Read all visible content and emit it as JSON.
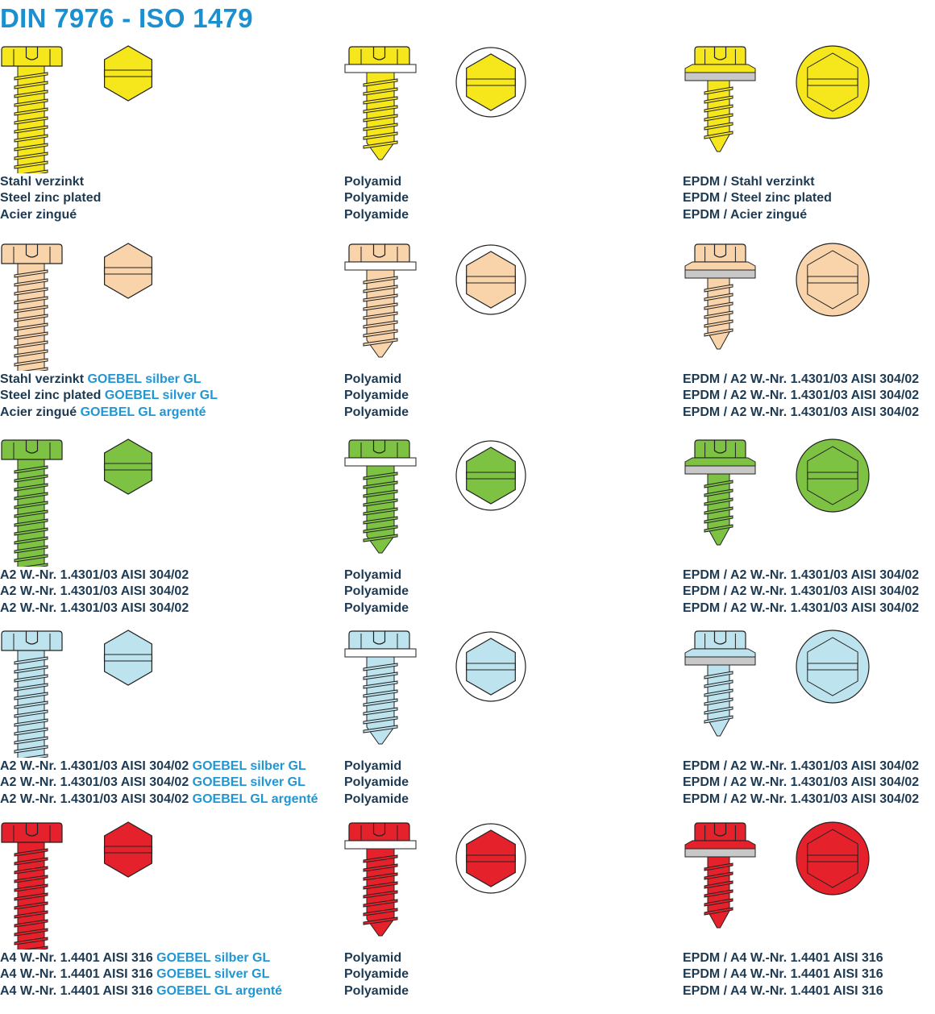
{
  "title": "DIN 7976 - ISO 1479",
  "colors": {
    "title": "#1a90d0",
    "text": "#1d3a52",
    "highlight": "#2196d3",
    "epdm": "#c8c8c8",
    "washer": "#ffffff"
  },
  "rows": [
    {
      "color": "#f5e71c",
      "cells": [
        {
          "type": "screw-plain",
          "lines": [
            [
              {
                "t": "Stahl verzinkt"
              }
            ],
            [
              {
                "t": "Steel zinc plated"
              }
            ],
            [
              {
                "t": "Acier zingué"
              }
            ]
          ]
        },
        {
          "type": "screw-polyamide-washer",
          "lines": [
            [
              {
                "t": "Polyamid"
              }
            ],
            [
              {
                "t": "Polyamide"
              }
            ],
            [
              {
                "t": "Polyamide"
              }
            ]
          ]
        },
        {
          "type": "screw-epdm-washer",
          "lines": [
            [
              {
                "t": "EPDM / Stahl verzinkt"
              }
            ],
            [
              {
                "t": "EPDM / Steel zinc plated"
              }
            ],
            [
              {
                "t": "EPDM / Acier zingué"
              }
            ]
          ]
        }
      ]
    },
    {
      "color": "#f9d4ab",
      "cells": [
        {
          "type": "screw-plain",
          "lines": [
            [
              {
                "t": "Stahl verzinkt "
              },
              {
                "t": "GOEBEL silber GL",
                "hl": true
              }
            ],
            [
              {
                "t": "Steel zinc plated "
              },
              {
                "t": "GOEBEL silver GL",
                "hl": true
              }
            ],
            [
              {
                "t": "Acier zingué "
              },
              {
                "t": "GOEBEL GL argenté",
                "hl": true
              }
            ]
          ]
        },
        {
          "type": "screw-polyamide-washer",
          "lines": [
            [
              {
                "t": "Polyamid"
              }
            ],
            [
              {
                "t": "Polyamide"
              }
            ],
            [
              {
                "t": "Polyamide"
              }
            ]
          ]
        },
        {
          "type": "screw-epdm-washer",
          "lines": [
            [
              {
                "t": "EPDM / A2 W.-Nr. 1.4301/03 AISI 304/02"
              }
            ],
            [
              {
                "t": "EPDM / A2 W.-Nr. 1.4301/03 AISI 304/02"
              }
            ],
            [
              {
                "t": "EPDM / A2 W.-Nr. 1.4301/03 AISI 304/02"
              }
            ]
          ]
        }
      ]
    },
    {
      "color": "#7dc243",
      "cells": [
        {
          "type": "screw-plain",
          "lines": [
            [
              {
                "t": "A2 W.-Nr. 1.4301/03 AISI 304/02"
              }
            ],
            [
              {
                "t": "A2 W.-Nr. 1.4301/03 AISI 304/02"
              }
            ],
            [
              {
                "t": "A2 W.-Nr. 1.4301/03 AISI 304/02"
              }
            ]
          ]
        },
        {
          "type": "screw-polyamide-washer",
          "lines": [
            [
              {
                "t": "Polyamid"
              }
            ],
            [
              {
                "t": "Polyamide"
              }
            ],
            [
              {
                "t": "Polyamide"
              }
            ]
          ]
        },
        {
          "type": "screw-epdm-washer",
          "lines": [
            [
              {
                "t": "EPDM / A2 W.-Nr. 1.4301/03 AISI 304/02"
              }
            ],
            [
              {
                "t": "EPDM / A2 W.-Nr. 1.4301/03 AISI 304/02"
              }
            ],
            [
              {
                "t": "EPDM / A2 W.-Nr. 1.4301/03 AISI 304/02"
              }
            ]
          ]
        }
      ]
    },
    {
      "color": "#bde4ee",
      "cells": [
        {
          "type": "screw-plain",
          "lines": [
            [
              {
                "t": "A2 W.-Nr. 1.4301/03 AISI 304/02 "
              },
              {
                "t": "GOEBEL silber GL",
                "hl": true
              }
            ],
            [
              {
                "t": "A2 W.-Nr. 1.4301/03 AISI 304/02 "
              },
              {
                "t": "GOEBEL silver GL",
                "hl": true
              }
            ],
            [
              {
                "t": "A2 W.-Nr. 1.4301/03 AISI 304/02 "
              },
              {
                "t": "GOEBEL GL argenté",
                "hl": true
              }
            ]
          ]
        },
        {
          "type": "screw-polyamide-washer",
          "lines": [
            [
              {
                "t": "Polyamid"
              }
            ],
            [
              {
                "t": "Polyamide"
              }
            ],
            [
              {
                "t": "Polyamide"
              }
            ]
          ]
        },
        {
          "type": "screw-epdm-washer",
          "lines": [
            [
              {
                "t": "EPDM / A2 W.-Nr. 1.4301/03 AISI 304/02"
              }
            ],
            [
              {
                "t": "EPDM / A2 W.-Nr. 1.4301/03 AISI 304/02"
              }
            ],
            [
              {
                "t": "EPDM / A2 W.-Nr. 1.4301/03 AISI 304/02"
              }
            ]
          ]
        }
      ]
    },
    {
      "color": "#e5212b",
      "cells": [
        {
          "type": "screw-plain",
          "lines": [
            [
              {
                "t": "A4 W.-Nr. 1.4401 AISI 316 "
              },
              {
                "t": "GOEBEL silber GL",
                "hl": true
              }
            ],
            [
              {
                "t": "A4 W.-Nr. 1.4401 AISI 316 "
              },
              {
                "t": "GOEBEL silver GL",
                "hl": true
              }
            ],
            [
              {
                "t": "A4 W.-Nr. 1.4401 AISI 316 "
              },
              {
                "t": "GOEBEL GL argenté",
                "hl": true
              }
            ]
          ]
        },
        {
          "type": "screw-polyamide-washer",
          "lines": [
            [
              {
                "t": "Polyamid"
              }
            ],
            [
              {
                "t": "Polyamide"
              }
            ],
            [
              {
                "t": "Polyamide"
              }
            ]
          ]
        },
        {
          "type": "screw-epdm-washer",
          "lines": [
            [
              {
                "t": "EPDM / A4 W.-Nr. 1.4401 AISI 316"
              }
            ],
            [
              {
                "t": "EPDM / A4 W.-Nr. 1.4401 AISI 316"
              }
            ],
            [
              {
                "t": "EPDM / A4 W.-Nr. 1.4401 AISI 316"
              }
            ]
          ]
        }
      ]
    }
  ]
}
